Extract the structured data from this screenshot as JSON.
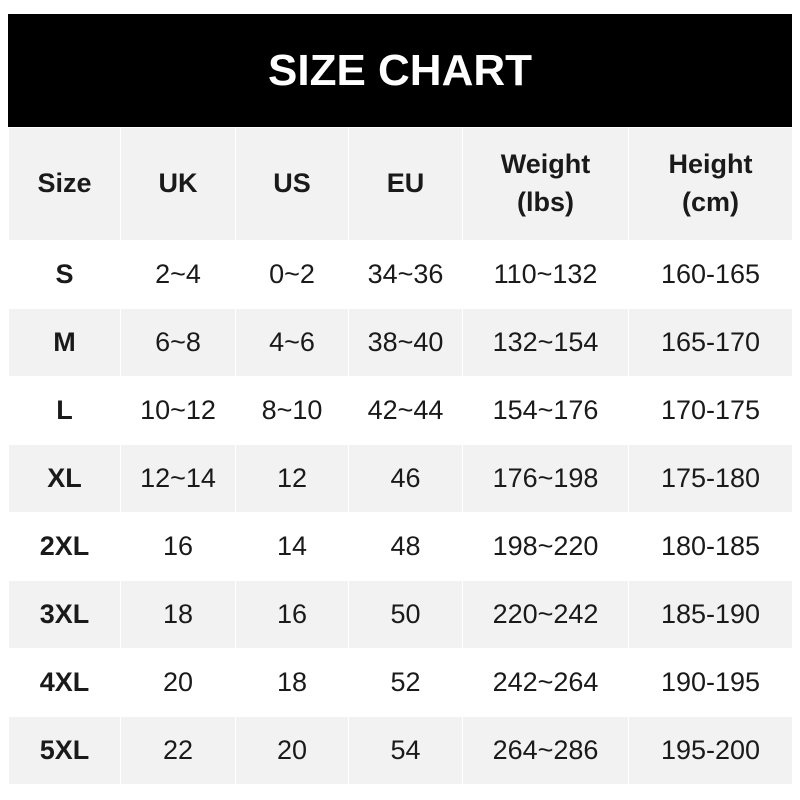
{
  "title": "SIZE CHART",
  "headers": [
    "Size",
    "UK",
    "US",
    "EU",
    "Weight\n(lbs)",
    "Height\n(cm)"
  ],
  "header_lines": [
    [
      "Size"
    ],
    [
      "UK"
    ],
    [
      "US"
    ],
    [
      "EU"
    ],
    [
      "Weight",
      "(lbs)"
    ],
    [
      "Height",
      "(cm)"
    ]
  ],
  "rows": [
    [
      "S",
      "2~4",
      "0~2",
      "34~36",
      "110~132",
      "160-165"
    ],
    [
      "M",
      "6~8",
      "4~6",
      "38~40",
      "132~154",
      "165-170"
    ],
    [
      "L",
      "10~12",
      "8~10",
      "42~44",
      "154~176",
      "170-175"
    ],
    [
      "XL",
      "12~14",
      "12",
      "46",
      "176~198",
      "175-180"
    ],
    [
      "2XL",
      "16",
      "14",
      "48",
      "198~220",
      "180-185"
    ],
    [
      "3XL",
      "18",
      "16",
      "50",
      "220~242",
      "185-190"
    ],
    [
      "4XL",
      "20",
      "18",
      "52",
      "242~264",
      "190-195"
    ],
    [
      "5XL",
      "22",
      "20",
      "54",
      "264~286",
      "195-200"
    ]
  ],
  "colors": {
    "header_bg": "#000000",
    "row_alt": "#f2f2f2",
    "text": "#1a1a1a"
  }
}
